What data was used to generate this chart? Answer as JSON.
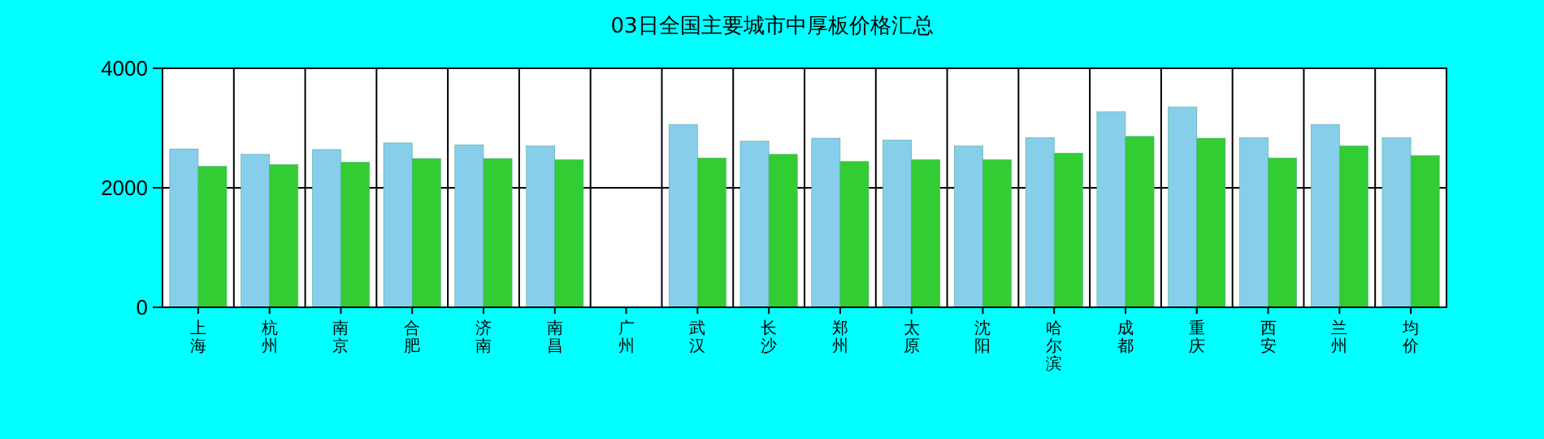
{
  "chart_data": {
    "type": "bar",
    "title": "03日全国主要城市中厚板价格汇总",
    "categories": [
      "上海",
      "杭州",
      "南京",
      "合肥",
      "济南",
      "南昌",
      "广州",
      "武汉",
      "长沙",
      "郑州",
      "太原",
      "沈阳",
      "哈尔滨",
      "成都",
      "重庆",
      "西安",
      "兰州",
      "均价"
    ],
    "series": [
      {
        "color": "#87ceeb",
        "values": [
          2650,
          2560,
          2640,
          2750,
          2720,
          2700,
          null,
          3060,
          2780,
          2830,
          2800,
          2700,
          2840,
          3270,
          3350,
          2840,
          3060,
          2840
        ]
      },
      {
        "color": "#32cd32",
        "values": [
          2360,
          2390,
          2430,
          2490,
          2490,
          2470,
          null,
          2500,
          2560,
          2440,
          2470,
          2470,
          2580,
          2860,
          2830,
          2500,
          2700,
          2540
        ]
      }
    ],
    "ylim": [
      0,
      4000
    ],
    "yticks": [
      0,
      2000,
      4000
    ],
    "grid": true
  }
}
